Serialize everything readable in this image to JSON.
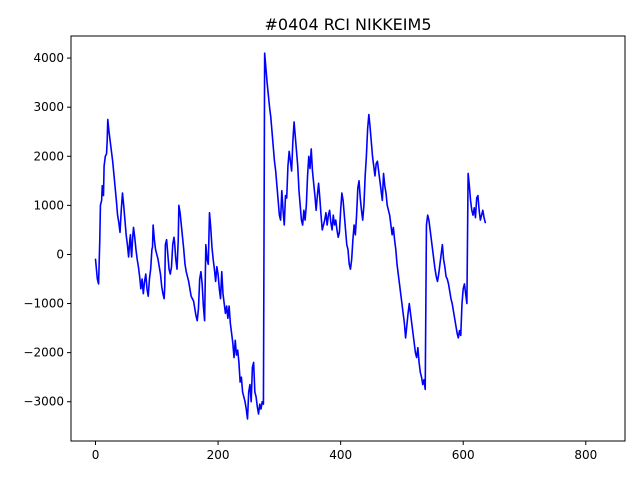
{
  "chart_data": {
    "type": "line",
    "title": "#0404 RCI NIKKEIM5",
    "xlabel": "",
    "ylabel": "",
    "xlim": [
      -40,
      864
    ],
    "ylim": [
      -3800,
      4450
    ],
    "xticks": [
      0,
      200,
      400,
      600,
      800
    ],
    "yticks": [
      -3000,
      -2000,
      -1000,
      0,
      1000,
      2000,
      3000,
      4000
    ],
    "xtick_labels": [
      "0",
      "200",
      "400",
      "600",
      "800"
    ],
    "ytick_labels": [
      "−3000",
      "−2000",
      "−1000",
      "0",
      "1000",
      "2000",
      "3000",
      "4000"
    ],
    "grid": false,
    "series": [
      {
        "name": "series-1",
        "color": "#0000ff",
        "points": [
          [
            0,
            -100
          ],
          [
            3,
            -500
          ],
          [
            5,
            -600
          ],
          [
            7,
            300
          ],
          [
            8,
            1000
          ],
          [
            10,
            1100
          ],
          [
            11,
            1400
          ],
          [
            13,
            1200
          ],
          [
            14,
            1800
          ],
          [
            16,
            2000
          ],
          [
            18,
            2050
          ],
          [
            19,
            2300
          ],
          [
            20,
            2750
          ],
          [
            22,
            2500
          ],
          [
            25,
            2200
          ],
          [
            28,
            1900
          ],
          [
            31,
            1500
          ],
          [
            34,
            1100
          ],
          [
            36,
            800
          ],
          [
            38,
            650
          ],
          [
            40,
            450
          ],
          [
            42,
            900
          ],
          [
            44,
            1250
          ],
          [
            46,
            1000
          ],
          [
            48,
            700
          ],
          [
            50,
            400
          ],
          [
            52,
            200
          ],
          [
            54,
            -50
          ],
          [
            56,
            300
          ],
          [
            57,
            400
          ],
          [
            58,
            100
          ],
          [
            59,
            -50
          ],
          [
            60,
            200
          ],
          [
            61,
            400
          ],
          [
            62,
            550
          ],
          [
            64,
            350
          ],
          [
            66,
            100
          ],
          [
            68,
            -100
          ],
          [
            70,
            -250
          ],
          [
            72,
            -450
          ],
          [
            74,
            -700
          ],
          [
            76,
            -500
          ],
          [
            78,
            -800
          ],
          [
            80,
            -550
          ],
          [
            82,
            -400
          ],
          [
            84,
            -700
          ],
          [
            86,
            -850
          ],
          [
            88,
            -500
          ],
          [
            90,
            -300
          ],
          [
            91,
            -100
          ],
          [
            92,
            100
          ],
          [
            93,
            150
          ],
          [
            94,
            600
          ],
          [
            96,
            300
          ],
          [
            98,
            100
          ],
          [
            100,
            0
          ],
          [
            102,
            -100
          ],
          [
            104,
            -250
          ],
          [
            106,
            -400
          ],
          [
            108,
            -650
          ],
          [
            110,
            -800
          ],
          [
            112,
            -900
          ],
          [
            113,
            -650
          ],
          [
            114,
            200
          ],
          [
            116,
            300
          ],
          [
            118,
            0
          ],
          [
            120,
            -300
          ],
          [
            122,
            -400
          ],
          [
            124,
            -250
          ],
          [
            126,
            200
          ],
          [
            128,
            350
          ],
          [
            129,
            250
          ],
          [
            131,
            -100
          ],
          [
            133,
            -300
          ],
          [
            135,
            300
          ],
          [
            136,
            1000
          ],
          [
            138,
            850
          ],
          [
            140,
            600
          ],
          [
            142,
            350
          ],
          [
            144,
            100
          ],
          [
            146,
            -200
          ],
          [
            148,
            -350
          ],
          [
            150,
            -450
          ],
          [
            152,
            -550
          ],
          [
            154,
            -700
          ],
          [
            156,
            -850
          ],
          [
            158,
            -900
          ],
          [
            160,
            -950
          ],
          [
            162,
            -1100
          ],
          [
            164,
            -1250
          ],
          [
            166,
            -1350
          ],
          [
            168,
            -1100
          ],
          [
            170,
            -500
          ],
          [
            172,
            -350
          ],
          [
            174,
            -600
          ],
          [
            176,
            -1050
          ],
          [
            178,
            -1350
          ],
          [
            180,
            200
          ],
          [
            182,
            -100
          ],
          [
            184,
            -200
          ],
          [
            186,
            850
          ],
          [
            188,
            550
          ],
          [
            190,
            150
          ],
          [
            192,
            -100
          ],
          [
            194,
            -300
          ],
          [
            196,
            -550
          ],
          [
            198,
            -250
          ],
          [
            200,
            -400
          ],
          [
            202,
            -700
          ],
          [
            204,
            -900
          ],
          [
            206,
            -350
          ],
          [
            208,
            -800
          ],
          [
            210,
            -1000
          ],
          [
            212,
            -1200
          ],
          [
            214,
            -1050
          ],
          [
            216,
            -1300
          ],
          [
            218,
            -1050
          ],
          [
            220,
            -1400
          ],
          [
            222,
            -1600
          ],
          [
            224,
            -1800
          ],
          [
            226,
            -2100
          ],
          [
            228,
            -1750
          ],
          [
            230,
            -2050
          ],
          [
            232,
            -1950
          ],
          [
            234,
            -2200
          ],
          [
            236,
            -2600
          ],
          [
            238,
            -2500
          ],
          [
            240,
            -2800
          ],
          [
            242,
            -2900
          ],
          [
            244,
            -3000
          ],
          [
            246,
            -3150
          ],
          [
            248,
            -3350
          ],
          [
            250,
            -2800
          ],
          [
            252,
            -2650
          ],
          [
            254,
            -3000
          ],
          [
            256,
            -2300
          ],
          [
            258,
            -2200
          ],
          [
            260,
            -2800
          ],
          [
            262,
            -2900
          ],
          [
            264,
            -3100
          ],
          [
            266,
            -3250
          ],
          [
            268,
            -3050
          ],
          [
            270,
            -3150
          ],
          [
            272,
            -3000
          ],
          [
            274,
            -3050
          ],
          [
            276,
            4100
          ],
          [
            278,
            3800
          ],
          [
            280,
            3500
          ],
          [
            282,
            3250
          ],
          [
            284,
            3000
          ],
          [
            286,
            2800
          ],
          [
            288,
            2500
          ],
          [
            290,
            2200
          ],
          [
            292,
            1900
          ],
          [
            294,
            1700
          ],
          [
            296,
            1400
          ],
          [
            298,
            1100
          ],
          [
            300,
            800
          ],
          [
            302,
            700
          ],
          [
            304,
            1300
          ],
          [
            306,
            900
          ],
          [
            308,
            600
          ],
          [
            310,
            1200
          ],
          [
            312,
            1150
          ],
          [
            314,
            1800
          ],
          [
            316,
            2100
          ],
          [
            318,
            1900
          ],
          [
            320,
            1700
          ],
          [
            322,
            2300
          ],
          [
            324,
            2700
          ],
          [
            326,
            2400
          ],
          [
            328,
            2100
          ],
          [
            330,
            1800
          ],
          [
            332,
            1300
          ],
          [
            334,
            1000
          ],
          [
            336,
            700
          ],
          [
            338,
            600
          ],
          [
            340,
            900
          ],
          [
            342,
            700
          ],
          [
            344,
            1000
          ],
          [
            346,
            1600
          ],
          [
            348,
            2000
          ],
          [
            350,
            1750
          ],
          [
            352,
            2150
          ],
          [
            354,
            1700
          ],
          [
            356,
            1450
          ],
          [
            358,
            1200
          ],
          [
            360,
            900
          ],
          [
            362,
            1200
          ],
          [
            364,
            1450
          ],
          [
            366,
            1150
          ],
          [
            368,
            800
          ],
          [
            370,
            500
          ],
          [
            372,
            600
          ],
          [
            374,
            700
          ],
          [
            376,
            850
          ],
          [
            378,
            600
          ],
          [
            380,
            800
          ],
          [
            382,
            900
          ],
          [
            384,
            650
          ],
          [
            386,
            500
          ],
          [
            388,
            800
          ],
          [
            390,
            600
          ],
          [
            392,
            700
          ],
          [
            394,
            500
          ],
          [
            396,
            350
          ],
          [
            398,
            450
          ],
          [
            400,
            900
          ],
          [
            402,
            1250
          ],
          [
            404,
            1100
          ],
          [
            406,
            800
          ],
          [
            408,
            500
          ],
          [
            410,
            200
          ],
          [
            412,
            100
          ],
          [
            414,
            -200
          ],
          [
            416,
            -300
          ],
          [
            418,
            -100
          ],
          [
            420,
            300
          ],
          [
            422,
            600
          ],
          [
            424,
            400
          ],
          [
            426,
            800
          ],
          [
            428,
            1350
          ],
          [
            430,
            1500
          ],
          [
            432,
            1150
          ],
          [
            434,
            900
          ],
          [
            436,
            700
          ],
          [
            438,
            1000
          ],
          [
            440,
            1600
          ],
          [
            442,
            2000
          ],
          [
            444,
            2550
          ],
          [
            446,
            2850
          ],
          [
            448,
            2600
          ],
          [
            450,
            2300
          ],
          [
            452,
            2000
          ],
          [
            454,
            1800
          ],
          [
            456,
            1600
          ],
          [
            458,
            1850
          ],
          [
            460,
            1900
          ],
          [
            462,
            1700
          ],
          [
            464,
            1500
          ],
          [
            466,
            1300
          ],
          [
            468,
            1100
          ],
          [
            470,
            1650
          ],
          [
            472,
            1400
          ],
          [
            474,
            1250
          ],
          [
            476,
            1000
          ],
          [
            478,
            900
          ],
          [
            480,
            800
          ],
          [
            482,
            600
          ],
          [
            484,
            400
          ],
          [
            486,
            550
          ],
          [
            488,
            300
          ],
          [
            490,
            100
          ],
          [
            492,
            -200
          ],
          [
            494,
            -400
          ],
          [
            496,
            -600
          ],
          [
            498,
            -800
          ],
          [
            500,
            -1000
          ],
          [
            502,
            -1200
          ],
          [
            504,
            -1400
          ],
          [
            506,
            -1700
          ],
          [
            508,
            -1450
          ],
          [
            510,
            -1200
          ],
          [
            512,
            -1000
          ],
          [
            514,
            -1200
          ],
          [
            516,
            -1400
          ],
          [
            518,
            -1600
          ],
          [
            520,
            -1800
          ],
          [
            522,
            -2000
          ],
          [
            524,
            -2100
          ],
          [
            526,
            -1900
          ],
          [
            528,
            -2200
          ],
          [
            530,
            -2400
          ],
          [
            532,
            -2500
          ],
          [
            534,
            -2650
          ],
          [
            536,
            -2550
          ],
          [
            538,
            -2750
          ],
          [
            540,
            600
          ],
          [
            542,
            800
          ],
          [
            544,
            700
          ],
          [
            546,
            500
          ],
          [
            548,
            300
          ],
          [
            550,
            100
          ],
          [
            552,
            -100
          ],
          [
            554,
            -300
          ],
          [
            556,
            -450
          ],
          [
            558,
            -550
          ],
          [
            560,
            -400
          ],
          [
            562,
            -200
          ],
          [
            564,
            0
          ],
          [
            566,
            200
          ],
          [
            568,
            -100
          ],
          [
            570,
            -250
          ],
          [
            572,
            -450
          ],
          [
            574,
            -500
          ],
          [
            576,
            -600
          ],
          [
            578,
            -750
          ],
          [
            580,
            -900
          ],
          [
            582,
            -1000
          ],
          [
            584,
            -1150
          ],
          [
            586,
            -1300
          ],
          [
            588,
            -1450
          ],
          [
            590,
            -1600
          ],
          [
            592,
            -1700
          ],
          [
            594,
            -1550
          ],
          [
            596,
            -1650
          ],
          [
            598,
            -1000
          ],
          [
            600,
            -700
          ],
          [
            602,
            -600
          ],
          [
            604,
            -800
          ],
          [
            606,
            -1000
          ],
          [
            608,
            1650
          ],
          [
            610,
            1400
          ],
          [
            612,
            1100
          ],
          [
            614,
            900
          ],
          [
            616,
            800
          ],
          [
            618,
            950
          ],
          [
            620,
            750
          ],
          [
            622,
            1150
          ],
          [
            624,
            1200
          ],
          [
            626,
            900
          ],
          [
            628,
            700
          ],
          [
            630,
            800
          ],
          [
            632,
            900
          ],
          [
            634,
            750
          ],
          [
            636,
            650
          ]
        ]
      }
    ]
  }
}
